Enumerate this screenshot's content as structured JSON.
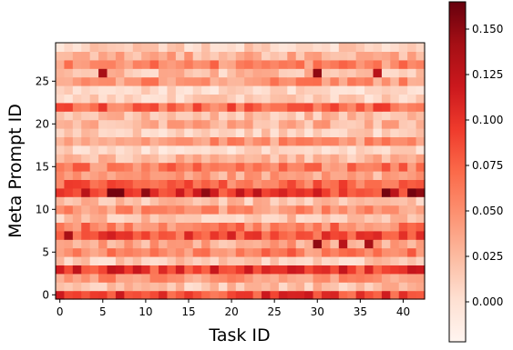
{
  "chart_data": {
    "type": "heatmap",
    "title": "",
    "xlabel": "Task ID",
    "ylabel": "Meta Prompt ID",
    "x_ticks": [
      "0",
      "5",
      "10",
      "15",
      "20",
      "25",
      "30",
      "35",
      "40"
    ],
    "y_ticks": [
      "0",
      "5",
      "10",
      "15",
      "20",
      "25"
    ],
    "colorbar_ticks": [
      "0.000",
      "0.025",
      "0.050",
      "0.075",
      "0.100",
      "0.125",
      "0.150"
    ],
    "colormap": "Reds",
    "color_range": [
      -0.022,
      0.165
    ],
    "n_tasks": 43,
    "n_meta_prompts": 30,
    "row_means": [
      0.09,
      0.02,
      0.045,
      0.095,
      0.015,
      0.06,
      0.035,
      0.085,
      0.06,
      0.02,
      0.05,
      0.02,
      0.1,
      0.07,
      0.035,
      0.06,
      0.025,
      0.005,
      0.045,
      0.012,
      0.03,
      0.02,
      0.075,
      0.01,
      0.005,
      0.05,
      0.02,
      0.055,
      0.03,
      0.01
    ],
    "hot_cells": [
      {
        "task": 6,
        "meta_prompt": 12,
        "value": 0.16
      },
      {
        "task": 7,
        "meta_prompt": 12,
        "value": 0.16
      },
      {
        "task": 10,
        "meta_prompt": 12,
        "value": 0.15
      },
      {
        "task": 17,
        "meta_prompt": 12,
        "value": 0.15
      },
      {
        "task": 38,
        "meta_prompt": 12,
        "value": 0.16
      },
      {
        "task": 41,
        "meta_prompt": 12,
        "value": 0.16
      },
      {
        "task": 42,
        "meta_prompt": 12,
        "value": 0.15
      },
      {
        "task": 1,
        "meta_prompt": 7,
        "value": 0.14
      },
      {
        "task": 30,
        "meta_prompt": 6,
        "value": 0.15
      },
      {
        "task": 33,
        "meta_prompt": 6,
        "value": 0.13
      },
      {
        "task": 36,
        "meta_prompt": 6,
        "value": 0.14
      },
      {
        "task": 5,
        "meta_prompt": 26,
        "value": 0.14
      },
      {
        "task": 30,
        "meta_prompt": 26,
        "value": 0.15
      },
      {
        "task": 37,
        "meta_prompt": 26,
        "value": 0.13
      }
    ]
  }
}
